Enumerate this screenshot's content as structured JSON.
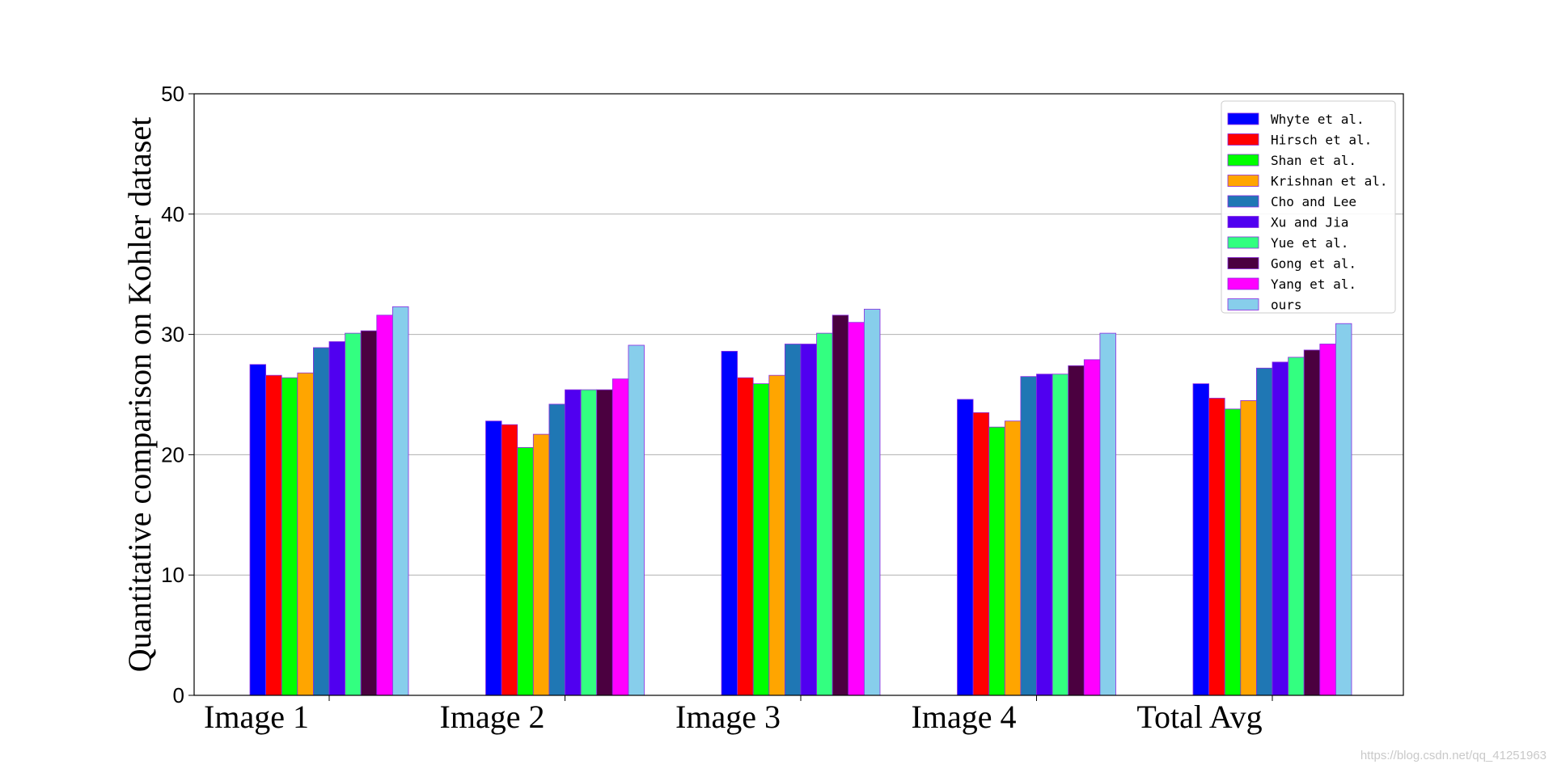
{
  "chart_data": {
    "type": "bar",
    "title": "",
    "xlabel": "",
    "ylabel": "Quantitative comparison on Kohler dataset",
    "ylim": [
      0,
      50
    ],
    "yticks": [
      0,
      10,
      20,
      30,
      40,
      50
    ],
    "grid": "horizontal",
    "legend_position": "top-right",
    "categories": [
      "Image 1",
      "Image 2",
      "Image 3",
      "Image 4",
      "Total Avg"
    ],
    "series": [
      {
        "name": "Whyte et al.",
        "color": "#0000ff",
        "values": [
          27.5,
          22.8,
          28.6,
          24.6,
          25.9
        ]
      },
      {
        "name": "Hirsch et al.",
        "color": "#ff0000",
        "values": [
          26.6,
          22.5,
          26.4,
          23.5,
          24.7
        ]
      },
      {
        "name": "Shan et al.",
        "color": "#00ff00",
        "values": [
          26.4,
          20.6,
          25.9,
          22.3,
          23.8
        ]
      },
      {
        "name": "Krishnan et al.",
        "color": "#ffa500",
        "values": [
          26.8,
          21.7,
          26.6,
          22.8,
          24.5
        ]
      },
      {
        "name": "Cho and Lee",
        "color": "#1f77b4",
        "values": [
          28.9,
          24.2,
          29.2,
          26.5,
          27.2
        ]
      },
      {
        "name": "Xu and Jia",
        "color": "#5000f0",
        "values": [
          29.4,
          25.4,
          29.2,
          26.7,
          27.7
        ]
      },
      {
        "name": "Yue et al.",
        "color": "#33ff80",
        "values": [
          30.1,
          25.4,
          30.1,
          26.7,
          28.1
        ]
      },
      {
        "name": "Gong et al.",
        "color": "#4b0040",
        "values": [
          30.3,
          25.4,
          31.6,
          27.4,
          28.7
        ]
      },
      {
        "name": "Yang et al.",
        "color": "#ff00ff",
        "values": [
          31.6,
          26.3,
          31.0,
          27.9,
          29.2
        ]
      },
      {
        "name": "ours",
        "color": "#87ceeb",
        "values": [
          32.3,
          29.1,
          32.1,
          30.1,
          30.9
        ]
      }
    ],
    "edge_color": "#8a2be2"
  },
  "watermark": "https://blog.csdn.net/qq_41251963"
}
